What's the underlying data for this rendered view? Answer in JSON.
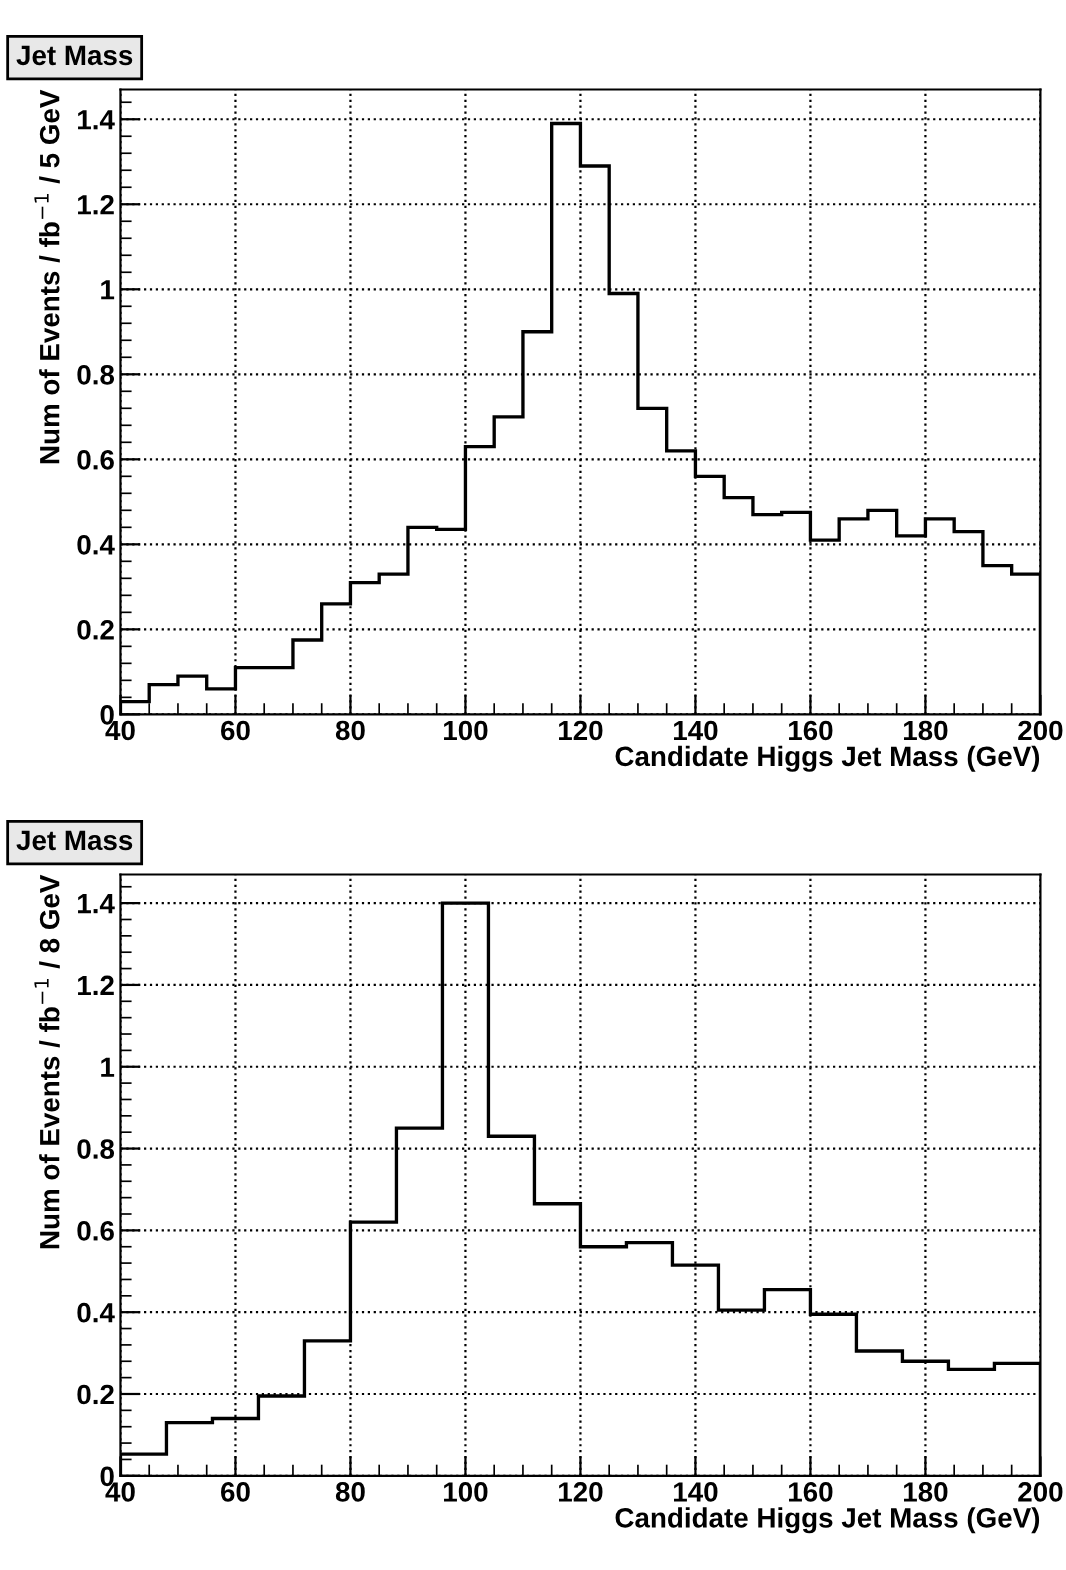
{
  "chart_data": [
    {
      "type": "histogram",
      "title": "Jet Mass",
      "xlabel": "Candidate Higgs Jet Mass (GeV)",
      "ylabel": "Num of Events / fb$^{−1}$ / 5 GeV",
      "bins": [
        40,
        45,
        50,
        55,
        60,
        65,
        70,
        75,
        80,
        85,
        90,
        95,
        100,
        105,
        110,
        115,
        120,
        125,
        130,
        135,
        140,
        145,
        150,
        155,
        160,
        165,
        170,
        175,
        180,
        185,
        190,
        195,
        200
      ],
      "values": [
        0.03,
        0.07,
        0.09,
        0.06,
        0.11,
        0.11,
        0.175,
        0.26,
        0.31,
        0.33,
        0.44,
        0.435,
        0.63,
        0.7,
        0.9,
        1.39,
        1.29,
        0.99,
        0.72,
        0.62,
        0.56,
        0.51,
        0.47,
        0.475,
        0.41,
        0.46,
        0.48,
        0.42,
        0.46,
        0.43,
        0.35,
        0.33
      ],
      "color": "#000000",
      "xlim": [
        40,
        200
      ],
      "ylim": [
        0,
        1.47
      ],
      "xticks": [
        40,
        60,
        80,
        100,
        120,
        140,
        160,
        180,
        200
      ],
      "yticks": [
        0,
        0.2,
        0.4,
        0.6,
        0.8,
        1,
        1.2,
        1.4
      ],
      "grid": true
    },
    {
      "type": "histogram",
      "title": "Jet Mass",
      "xlabel": "Candidate Higgs Jet Mass (GeV)",
      "ylabel": "Num of Events / fb$^{−1}$ / 8 GeV",
      "bins": [
        40,
        48,
        56,
        64,
        72,
        80,
        88,
        96,
        104,
        112,
        120,
        128,
        136,
        144,
        152,
        160,
        168,
        176,
        184,
        192,
        200
      ],
      "values": [
        0.053,
        0.13,
        0.14,
        0.195,
        0.33,
        0.62,
        0.85,
        1.4,
        0.83,
        0.665,
        0.56,
        0.57,
        0.515,
        0.405,
        0.455,
        0.395,
        0.305,
        0.28,
        0.26,
        0.275
      ],
      "color": "#000000",
      "xlim": [
        40,
        200
      ],
      "ylim": [
        0,
        1.47
      ],
      "xticks": [
        40,
        60,
        80,
        100,
        120,
        140,
        160,
        180,
        200
      ],
      "yticks": [
        0,
        0.2,
        0.4,
        0.6,
        0.8,
        1,
        1.2,
        1.4
      ],
      "grid": true
    }
  ]
}
